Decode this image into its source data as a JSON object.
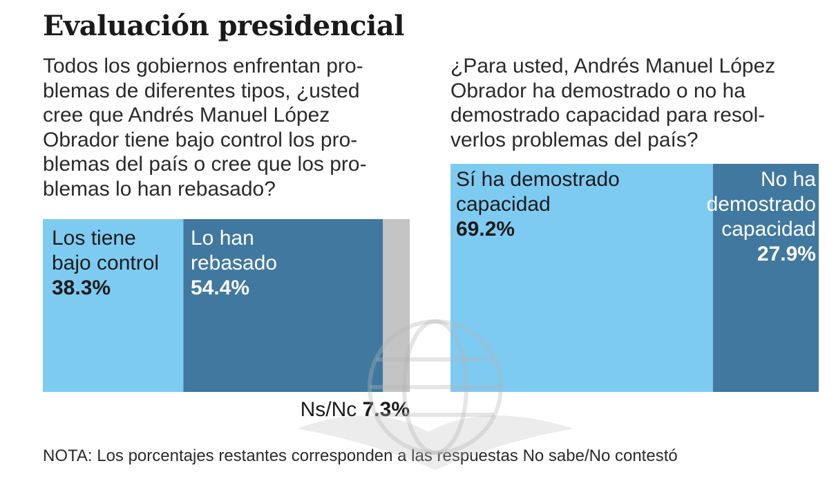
{
  "title": "Evaluación presidencial",
  "question_left": {
    "lines": [
      "Todos los gobiernos enfrentan pro-",
      "blemas de diferentes tipos, ¿usted",
      "cree que Andrés Manuel López",
      "Obrador tiene bajo control los pro-",
      "blemas del país o cree que los pro-",
      "blemas lo han rebasado?"
    ]
  },
  "question_right": {
    "lines": [
      "¿Para usted, Andrés Manuel López",
      "Obrador ha demostrado o no ha",
      "demostrado capacidad para resol-",
      "verlos problemas del país?"
    ]
  },
  "chart_data": [
    {
      "type": "bar",
      "orientation": "horizontal-stacked",
      "segments": [
        {
          "label_lines": [
            "Los tiene",
            "bajo control"
          ],
          "value": 38.3,
          "value_label": "38.3%",
          "color": "#7ecbf2"
        },
        {
          "label_lines": [
            "Lo han",
            "rebasado"
          ],
          "value": 54.4,
          "value_label": "54.4%",
          "color": "#40789f"
        },
        {
          "label_lines": [
            "Ns/Nc"
          ],
          "value": 7.3,
          "value_label": "7.3%",
          "color": "#c4c4c4"
        }
      ]
    },
    {
      "type": "bar",
      "orientation": "horizontal-stacked",
      "segments": [
        {
          "label_lines": [
            "Sí ha demostrado",
            "capacidad"
          ],
          "value": 69.2,
          "value_label": "69.2%",
          "color": "#7ecbf2"
        },
        {
          "label_lines": [
            "No ha",
            "demostrado",
            "capacidad"
          ],
          "value": 27.9,
          "value_label": "27.9%",
          "color": "#40789f"
        }
      ]
    }
  ],
  "note": "NOTA: Los porcentajes restantes corresponden a las respuestas No sabe/No contestó",
  "colors": {
    "light_blue": "#7ecbf2",
    "dark_blue": "#40789f",
    "gray": "#c4c4c4"
  }
}
